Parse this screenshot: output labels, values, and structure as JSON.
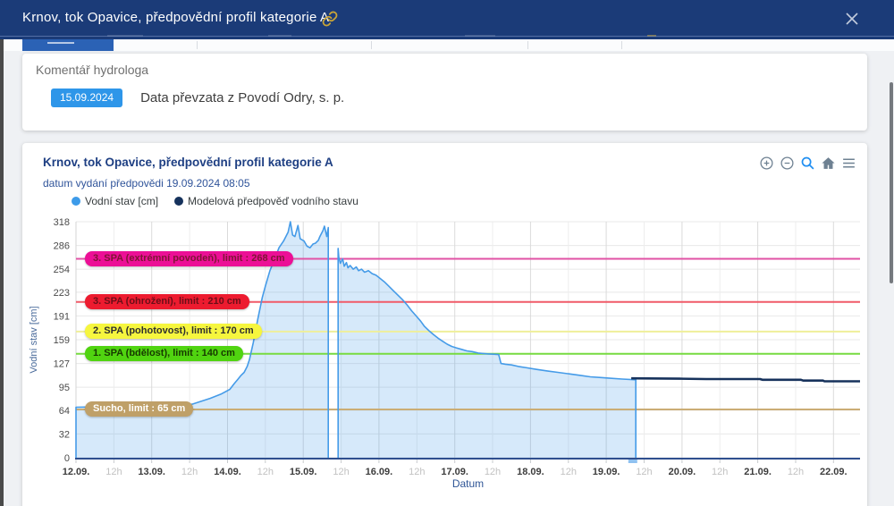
{
  "modal": {
    "title": "Krnov, tok Opavice, předpovědní profil kategorie A"
  },
  "comment_card": {
    "heading": "Komentář hydrologa",
    "date_badge": "15.09.2024",
    "text": "Data převzata z Povodí Odry, s. p."
  },
  "chart_card": {
    "title": "Krnov, tok Opavice, předpovědní profil kategorie A",
    "subtitle": "datum vydání předpovědi 19.09.2024 08:05"
  },
  "chart_data": {
    "type": "area",
    "title": "Krnov, tok Opavice, předpovědní profil kategorie A",
    "subtitle": "datum vydání předpovědi 19.09.2024 08:05",
    "xlabel": "Datum",
    "ylabel": "Vodní stav [cm]",
    "ylim": [
      0,
      318
    ],
    "y_ticks": [
      0,
      32,
      64,
      95,
      127,
      159,
      191,
      223,
      254,
      286,
      318
    ],
    "x_days_span": 10.35,
    "x_ticks": [
      {
        "label": "12.09.",
        "t": 0,
        "major": true
      },
      {
        "label": "12h",
        "t": 0.5,
        "major": false
      },
      {
        "label": "13.09.",
        "t": 1,
        "major": true
      },
      {
        "label": "12h",
        "t": 1.5,
        "major": false
      },
      {
        "label": "14.09.",
        "t": 2,
        "major": true
      },
      {
        "label": "12h",
        "t": 2.5,
        "major": false
      },
      {
        "label": "15.09.",
        "t": 3,
        "major": true
      },
      {
        "label": "12h",
        "t": 3.5,
        "major": false
      },
      {
        "label": "16.09.",
        "t": 4,
        "major": true
      },
      {
        "label": "12h",
        "t": 4.5,
        "major": false
      },
      {
        "label": "17.09.",
        "t": 5,
        "major": true
      },
      {
        "label": "12h",
        "t": 5.5,
        "major": false
      },
      {
        "label": "18.09.",
        "t": 6,
        "major": true
      },
      {
        "label": "12h",
        "t": 6.5,
        "major": false
      },
      {
        "label": "19.09.",
        "t": 7,
        "major": true
      },
      {
        "label": "12h",
        "t": 7.5,
        "major": false
      },
      {
        "label": "20.09.",
        "t": 8,
        "major": true
      },
      {
        "label": "12h",
        "t": 8.5,
        "major": false
      },
      {
        "label": "21.09.",
        "t": 9,
        "major": true
      },
      {
        "label": "12h",
        "t": 9.5,
        "major": false
      },
      {
        "label": "22.09.",
        "t": 10,
        "major": true
      }
    ],
    "legend": [
      {
        "label": "Vodní stav [cm]",
        "color": "#3D9BE9"
      },
      {
        "label": "Modelová předpověď vodního stavu",
        "color": "#16325C"
      }
    ],
    "limits": [
      {
        "label": "3. SPA (extrémní povodeň), limit : 268 cm",
        "value": 268,
        "line": "#E152A5",
        "bg": "#EC0F96",
        "fg": "#7E1534"
      },
      {
        "label": "3. SPA (ohrožení), limit : 210 cm",
        "value": 210,
        "line": "#F05A68",
        "bg": "#ED1B2F",
        "fg": "#6B0E18"
      },
      {
        "label": "2. SPA (pohotovost), limit : 170 cm",
        "value": 170,
        "line": "#EFEF9A",
        "bg": "#F6F63E",
        "fg": "#2E2E2E"
      },
      {
        "label": "1. SPA (bdělost), limit : 140 cm",
        "value": 140,
        "line": "#77DB40",
        "bg": "#50D410",
        "fg": "#173A00"
      },
      {
        "label": "Sucho, limit : 65 cm",
        "value": 65,
        "line": "#CBAD75",
        "bg": "#BFA068",
        "fg": "#FFFFFF"
      }
    ],
    "series": [
      {
        "name": "Vodní stav [cm]",
        "kind": "area",
        "color": "#459BE8",
        "fill": "rgba(69,155,232,0.22)",
        "segments": [
          [
            [
              0,
              68
            ],
            [
              0.53,
              69
            ],
            [
              1.0,
              70
            ],
            [
              1.53,
              72
            ],
            [
              1.77,
              80
            ],
            [
              1.92,
              86
            ],
            [
              2.03,
              92
            ],
            [
              2.09,
              100
            ],
            [
              2.14,
              106
            ],
            [
              2.18,
              111
            ],
            [
              2.22,
              115
            ],
            [
              2.26,
              123
            ],
            [
              2.29,
              132
            ],
            [
              2.34,
              155
            ],
            [
              2.4,
              187
            ],
            [
              2.46,
              216
            ],
            [
              2.5,
              231
            ],
            [
              2.56,
              252
            ],
            [
              2.62,
              267
            ],
            [
              2.68,
              283
            ],
            [
              2.74,
              292
            ],
            [
              2.8,
              304
            ],
            [
              2.83,
              318
            ],
            [
              2.86,
              300
            ],
            [
              2.89,
              298
            ],
            [
              2.93,
              313
            ],
            [
              2.96,
              295
            ],
            [
              3.01,
              292
            ],
            [
              3.05,
              285
            ],
            [
              3.09,
              283
            ],
            [
              3.13,
              288
            ],
            [
              3.16,
              289
            ],
            [
              3.2,
              293
            ],
            [
              3.22,
              298
            ],
            [
              3.26,
              306
            ],
            [
              3.28,
              312
            ],
            [
              3.31,
              298
            ],
            [
              3.33,
              310
            ]
          ],
          [
            [
              3.46,
              282
            ],
            [
              3.47,
              270
            ],
            [
              3.49,
              262
            ],
            [
              3.52,
              268
            ],
            [
              3.54,
              258
            ],
            [
              3.57,
              263
            ],
            [
              3.59,
              256
            ],
            [
              3.62,
              259
            ],
            [
              3.66,
              254
            ],
            [
              3.7,
              257
            ],
            [
              3.73,
              252
            ],
            [
              3.77,
              254
            ],
            [
              3.81,
              250
            ],
            [
              3.86,
              252
            ],
            [
              3.91,
              248
            ],
            [
              3.96,
              246
            ],
            [
              4.01,
              242
            ],
            [
              4.07,
              237
            ],
            [
              4.13,
              231
            ],
            [
              4.19,
              225
            ],
            [
              4.25,
              219
            ],
            [
              4.31,
              213
            ],
            [
              4.37,
              206
            ],
            [
              4.43,
              198
            ],
            [
              4.49,
              191
            ],
            [
              4.55,
              184
            ],
            [
              4.6,
              177
            ],
            [
              4.66,
              171
            ],
            [
              4.72,
              166
            ],
            [
              4.78,
              161
            ],
            [
              4.84,
              157
            ],
            [
              4.9,
              153
            ],
            [
              4.96,
              150
            ],
            [
              5.02,
              148
            ],
            [
              5.09,
              146
            ],
            [
              5.16,
              144
            ],
            [
              5.23,
              143
            ],
            [
              5.31,
              141
            ],
            [
              5.43,
              140
            ],
            [
              5.58,
              139
            ],
            [
              5.61,
              127
            ],
            [
              5.67,
              126
            ],
            [
              5.75,
              125
            ],
            [
              5.84,
              123
            ],
            [
              5.96,
              121
            ],
            [
              6.08,
              119
            ],
            [
              6.22,
              117
            ],
            [
              6.36,
              115
            ],
            [
              6.51,
              113
            ],
            [
              6.65,
              111
            ],
            [
              6.79,
              109
            ],
            [
              6.93,
              108
            ],
            [
              7.07,
              107
            ],
            [
              7.21,
              106
            ],
            [
              7.39,
              105
            ]
          ]
        ]
      },
      {
        "name": "Modelová předpověď vodního stavu",
        "kind": "line",
        "color": "#17325C",
        "segments": [
          [
            [
              7.33,
              107
            ],
            [
              7.97,
              106.5
            ],
            [
              8.32,
              106
            ],
            [
              9.03,
              106
            ],
            [
              9.06,
              105
            ],
            [
              9.57,
              105
            ],
            [
              9.6,
              104
            ],
            [
              9.86,
              104
            ],
            [
              9.88,
              103
            ],
            [
              10.35,
              103
            ]
          ]
        ]
      }
    ],
    "axis_marker_t": 7.35
  }
}
